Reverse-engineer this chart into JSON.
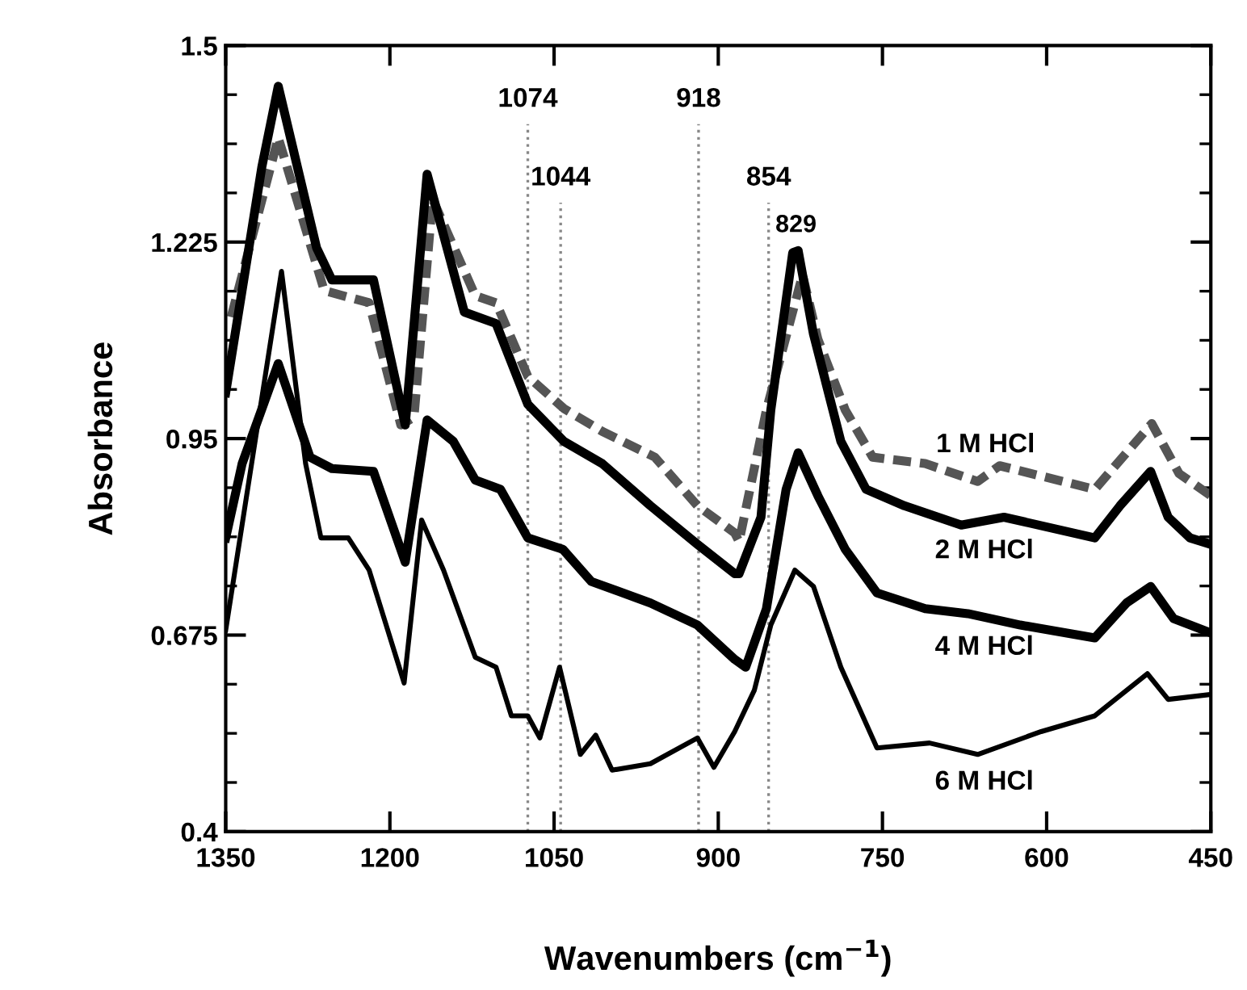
{
  "chart_data": {
    "type": "line",
    "xlabel": "Wavenumbers (cm$^{−1}$)",
    "ylabel": "Absorbance",
    "xlim": [
      1350,
      450
    ],
    "xticks": [
      1350,
      1200,
      1050,
      900,
      750,
      600,
      450
    ],
    "ylim": [
      0.4,
      1.5
    ],
    "yticks": [
      0.4,
      0.675,
      0.95,
      1.225,
      1.5
    ],
    "grid": false,
    "legend": false,
    "marker": "none",
    "series": [
      {
        "name": "1 M HCl",
        "color": "#555555",
        "line_style": "dashed",
        "x": [
          1345,
          1302,
          1260,
          1219,
          1190,
          1178,
          1161,
          1122,
          1103,
          1074,
          1041,
          1006,
          958,
          919,
          885,
          881,
          856,
          823,
          809,
          784,
          759,
          711,
          663,
          643,
          556,
          504,
          479,
          450
        ],
        "values": [
          1.12,
          1.371,
          1.157,
          1.14,
          0.969,
          0.98,
          1.285,
          1.15,
          1.14,
          1.037,
          0.992,
          0.96,
          0.924,
          0.856,
          0.818,
          0.806,
          0.99,
          1.179,
          1.089,
          0.99,
          0.924,
          0.915,
          0.89,
          0.912,
          0.879,
          0.971,
          0.901,
          0.87
        ]
      },
      {
        "name": "2 M HCl",
        "color": "#000000",
        "line_style": "solid",
        "x": [
          1350,
          1317,
          1302,
          1267,
          1253,
          1215,
          1186,
          1166,
          1132,
          1103,
          1074,
          1041,
          1006,
          962,
          919,
          885,
          881,
          861,
          852,
          832,
          827,
          813,
          788,
          765,
          730,
          678,
          639,
          556,
          533,
          505,
          489,
          469,
          450
        ],
        "values": [
          1.014,
          1.33,
          1.443,
          1.217,
          1.172,
          1.172,
          0.969,
          1.32,
          1.127,
          1.111,
          0.998,
          0.946,
          0.915,
          0.856,
          0.802,
          0.761,
          0.761,
          0.84,
          0.99,
          1.21,
          1.213,
          1.096,
          0.946,
          0.879,
          0.856,
          0.829,
          0.84,
          0.811,
          0.856,
          0.904,
          0.84,
          0.811,
          0.802
        ]
      },
      {
        "name": "4 M HCl",
        "color": "#000000",
        "line_style": "solid",
        "x": [
          1350,
          1335,
          1302,
          1273,
          1253,
          1215,
          1186,
          1166,
          1142,
          1122,
          1099,
          1074,
          1042,
          1016,
          962,
          919,
          885,
          875,
          856,
          838,
          827,
          809,
          784,
          755,
          711,
          672,
          624,
          556,
          527,
          505,
          484,
          450
        ],
        "values": [
          0.811,
          0.915,
          1.055,
          0.924,
          0.908,
          0.904,
          0.777,
          0.976,
          0.946,
          0.892,
          0.879,
          0.811,
          0.795,
          0.75,
          0.72,
          0.689,
          0.641,
          0.63,
          0.712,
          0.879,
          0.93,
          0.87,
          0.795,
          0.734,
          0.712,
          0.705,
          0.689,
          0.671,
          0.72,
          0.743,
          0.698,
          0.678
        ]
      },
      {
        "name": "6 M HCl",
        "color": "#000000",
        "line_style": "solid",
        "x": [
          1350,
          1299,
          1277,
          1263,
          1238,
          1219,
          1187,
          1171,
          1151,
          1122,
          1103,
          1089,
          1074,
          1063,
          1045,
          1026,
          1012,
          997,
          962,
          919,
          904,
          885,
          867,
          852,
          830,
          813,
          788,
          755,
          707,
          663,
          605,
          556,
          508,
          489,
          450
        ],
        "values": [
          0.682,
          1.184,
          0.915,
          0.811,
          0.811,
          0.766,
          0.608,
          0.836,
          0.766,
          0.644,
          0.63,
          0.562,
          0.562,
          0.531,
          0.63,
          0.508,
          0.535,
          0.486,
          0.495,
          0.531,
          0.49,
          0.54,
          0.598,
          0.689,
          0.766,
          0.743,
          0.63,
          0.517,
          0.524,
          0.508,
          0.54,
          0.562,
          0.621,
          0.585,
          0.592
        ]
      }
    ],
    "ref_lines": [
      {
        "axis": "x",
        "value": 1074,
        "label": "1074",
        "color": "#888888",
        "line_style": "dotted"
      },
      {
        "axis": "x",
        "value": 1044,
        "label": "1044",
        "color": "#888888",
        "line_style": "dotted"
      },
      {
        "axis": "x",
        "value": 918,
        "label": "918",
        "color": "#888888",
        "line_style": "dotted"
      },
      {
        "axis": "x",
        "value": 854,
        "label": "854",
        "color": "#888888",
        "line_style": "dotted"
      }
    ],
    "annotations": [
      {
        "text": "829",
        "x": 829,
        "y": 1.213
      }
    ]
  }
}
